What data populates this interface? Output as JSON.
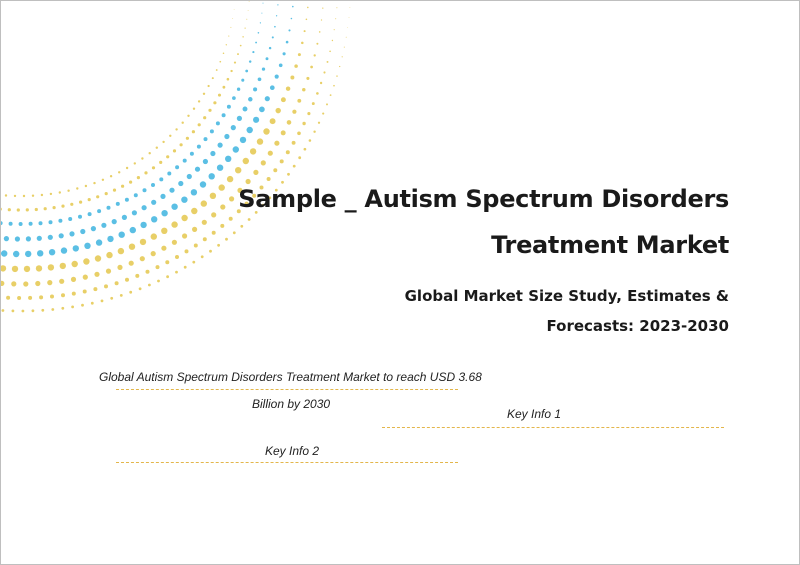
{
  "document": {
    "title_line1": "Sample _ Autism Spectrum Disorders",
    "title_line2": "Treatment Market",
    "subtitle_line1": "Global Market Size Study, Estimates &",
    "subtitle_line2": "Forecasts: 2023-2030"
  },
  "highlights": {
    "main_line1": "Global Autism Spectrum Disorders Treatment Market to reach USD 3.68",
    "main_line2": "Billion by 2030",
    "key_info_1": "Key Info 1",
    "key_info_2": "Key Info 2"
  },
  "colors": {
    "blue_dots": "#5bbfe4",
    "yellow_dots": "#e8cf67",
    "rule": "#e3b64a"
  }
}
